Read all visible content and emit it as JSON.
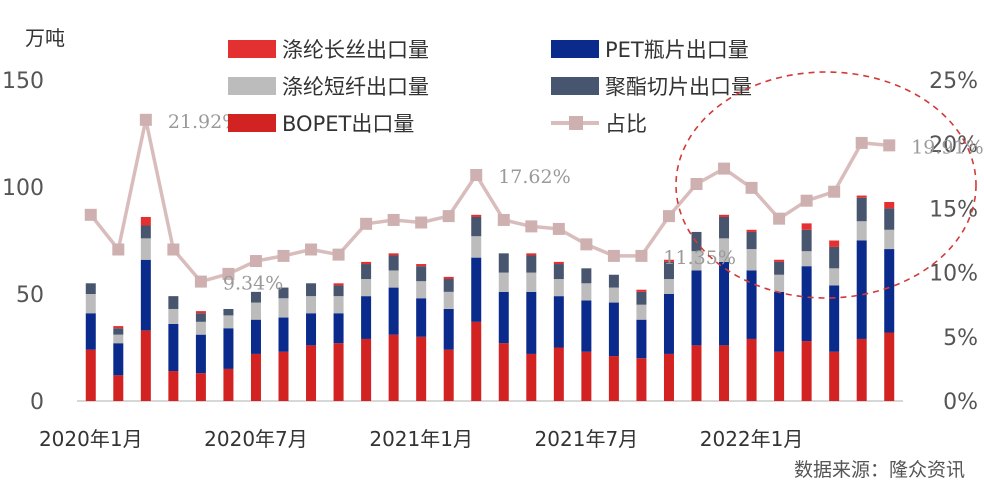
{
  "chart_data": {
    "type": "bar",
    "stacked": true,
    "unit_left": "万吨",
    "source": "数据来源：隆众资讯",
    "x_tick_labels": [
      "2020年1月",
      "2020年7月",
      "2021年1月",
      "2021年7月",
      "2022年1月"
    ],
    "ylim_left": [
      0,
      150
    ],
    "yticks_left": [
      "0",
      "50",
      "100",
      "150"
    ],
    "ylim_right": [
      0,
      25
    ],
    "yticks_right": [
      "0%",
      "5%",
      "10%",
      "15%",
      "20%",
      "25%"
    ],
    "categories": [
      "2020-01",
      "2020-02",
      "2020-03",
      "2020-04",
      "2020-05",
      "2020-06",
      "2020-07",
      "2020-08",
      "2020-09",
      "2020-10",
      "2020-11",
      "2020-12",
      "2021-01",
      "2021-02",
      "2021-03",
      "2021-04",
      "2021-05",
      "2021-06",
      "2021-07",
      "2021-08",
      "2021-09",
      "2021-10",
      "2021-11",
      "2021-12",
      "2022-01",
      "2022-02",
      "2022-03",
      "2022-04",
      "2022-05",
      "2022-06"
    ],
    "series": [
      {
        "name": "BOPET出口量",
        "color": "#d32222",
        "values": [
          24,
          12,
          33,
          14,
          13,
          15,
          22,
          23,
          26,
          27,
          29,
          31,
          30,
          24,
          37,
          27,
          22,
          25,
          23,
          21,
          20,
          22,
          26,
          26,
          29,
          23,
          28,
          23,
          29,
          32
        ]
      },
      {
        "name": "PET瓶片出口量",
        "color": "#0a2a8c",
        "values": [
          17,
          15,
          33,
          22,
          18,
          19,
          16,
          16,
          15,
          14,
          20,
          22,
          18,
          19,
          30,
          24,
          29,
          24,
          24,
          25,
          18,
          28,
          35,
          39,
          32,
          28,
          35,
          31,
          46,
          39
        ]
      },
      {
        "name": "涤纶短纤出口量",
        "color": "#bcbcbc",
        "values": [
          9,
          4,
          10,
          7,
          6,
          6,
          8,
          9,
          8,
          8,
          8,
          8,
          8,
          8,
          10,
          9,
          9,
          8,
          8,
          7,
          7,
          7,
          9,
          11,
          10,
          8,
          7,
          8,
          9,
          9
        ]
      },
      {
        "name": "聚酯切片出口量",
        "color": "#47566e",
        "values": [
          5,
          3,
          6,
          6,
          4,
          3,
          5,
          5,
          6,
          5,
          7,
          7,
          7,
          6,
          9,
          9,
          8,
          7,
          7,
          6,
          6,
          8,
          9,
          10,
          8,
          6,
          10,
          10,
          11,
          10
        ]
      },
      {
        "name": "涤纶长丝出口量",
        "color": "#e33030",
        "values": [
          0,
          1,
          4,
          0,
          1,
          0,
          0,
          0,
          0,
          1,
          1,
          1,
          1,
          1,
          1,
          0,
          1,
          1,
          0,
          0,
          1,
          1,
          0,
          1,
          1,
          1,
          3,
          3,
          1,
          3
        ]
      }
    ],
    "ratio": {
      "name": "占比",
      "color": "#d9bcbc",
      "marker_color": "#cfb0b0",
      "values": [
        14.5,
        11.8,
        21.9,
        11.8,
        9.3,
        9.9,
        10.9,
        11.3,
        11.8,
        11.4,
        13.8,
        14.1,
        13.9,
        14.4,
        17.6,
        14.1,
        13.6,
        13.4,
        12.2,
        11.3,
        11.3,
        14.4,
        16.9,
        18.1,
        16.6,
        14.2,
        15.6,
        16.3,
        20.1,
        19.91
      ]
    },
    "annotations": [
      {
        "text": "21.92%",
        "index": 2
      },
      {
        "text": "9.34%",
        "index": 4
      },
      {
        "text": "17.62%",
        "index": 14
      },
      {
        "text": "11.35%",
        "index": 20
      },
      {
        "text": "19.91%",
        "index": 29
      }
    ],
    "legend": [
      {
        "label": "涤纶长丝出口量",
        "color": "#e33030",
        "kind": "box"
      },
      {
        "label": "PET瓶片出口量",
        "color": "#0a2a8c",
        "kind": "box"
      },
      {
        "label": "涤纶短纤出口量",
        "color": "#bcbcbc",
        "kind": "box"
      },
      {
        "label": "聚酯切片出口量",
        "color": "#47566e",
        "kind": "box"
      },
      {
        "label": "BOPET出口量",
        "color": "#d32222",
        "kind": "box"
      },
      {
        "label": "占比",
        "color": "#d9bcbc",
        "kind": "line"
      }
    ]
  }
}
